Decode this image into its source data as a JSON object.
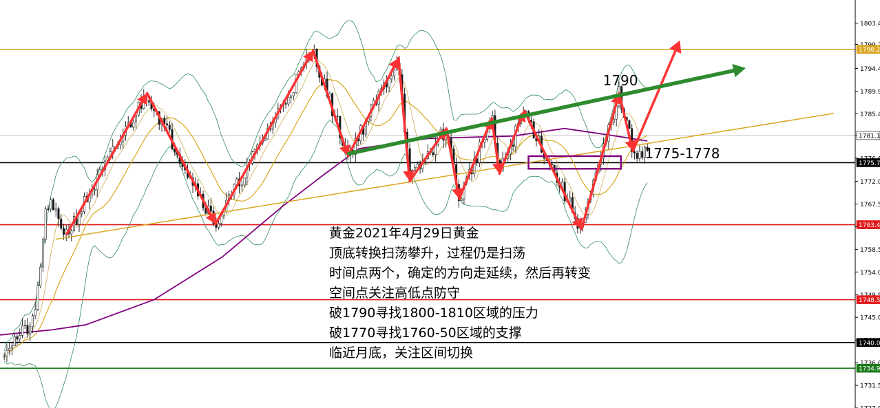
{
  "chart_data": {
    "type": "candlestick",
    "symbol": "XAUUSD",
    "ylim": [
      1727.0,
      1808.0
    ],
    "y_ticks": [
      "1803.4",
      "1799.2",
      "1794.4",
      "1789.9",
      "1785.4",
      "1781.1",
      "1776.6",
      "1772.0",
      "1767.5",
      "1763.0",
      "1758.5",
      "1754.0",
      "1749.5",
      "1745.0",
      "1740.5",
      "1736.0",
      "1731.5",
      "1727.0"
    ],
    "grid": false,
    "price_tags": [
      {
        "label": "1798.2",
        "value": 1798.2,
        "color": "#daa520"
      },
      {
        "label": "1781.1",
        "value": 1781.1,
        "color": "#ffffff"
      },
      {
        "label": "1775.7",
        "value": 1775.7,
        "color": "#000000"
      },
      {
        "label": "1763.4",
        "value": 1763.4,
        "color": "#e31a1c"
      },
      {
        "label": "1748.5",
        "value": 1748.5,
        "color": "#e31a1c"
      },
      {
        "label": "1740.0",
        "value": 1740.0,
        "color": "#000000"
      },
      {
        "label": "1734.9",
        "value": 1734.9,
        "color": "#1a7a1a"
      }
    ],
    "horizontal_levels": [
      {
        "value": 1798.2,
        "color": "#daa520"
      },
      {
        "value": 1775.7,
        "color": "#000000"
      },
      {
        "value": 1763.4,
        "color": "#e31a1c"
      },
      {
        "value": 1748.5,
        "color": "#e31a1c"
      },
      {
        "value": 1740.0,
        "color": "#000000"
      },
      {
        "value": 1734.9,
        "color": "#1a7a1a"
      }
    ],
    "swing_path": [
      [
        0.078,
        1761.5
      ],
      [
        0.172,
        1789.5
      ],
      [
        0.252,
        1763.5
      ],
      [
        0.366,
        1798.0
      ],
      [
        0.407,
        1777.0
      ],
      [
        0.466,
        1796.5
      ],
      [
        0.479,
        1772.0
      ],
      [
        0.522,
        1782.5
      ],
      [
        0.537,
        1768.5
      ],
      [
        0.575,
        1784.5
      ],
      [
        0.584,
        1773.5
      ],
      [
        0.613,
        1786.0
      ],
      [
        0.68,
        1762.5
      ],
      [
        0.724,
        1789.5
      ],
      [
        0.74,
        1778.0
      ]
    ],
    "projection_arrow": [
      [
        0.74,
        1778.0
      ],
      [
        0.795,
        1800.0
      ]
    ],
    "trend_arrow": [
      [
        0.408,
        1777.5
      ],
      [
        0.872,
        1794.5
      ]
    ],
    "support_trendline": [
      [
        0.065,
        1760.5
      ],
      [
        0.975,
        1785.5
      ]
    ],
    "consolidation_box": {
      "x": [
        0.618,
        0.726
      ],
      "y": [
        1774.5,
        1777.0
      ]
    },
    "annotations": [
      {
        "text": "1790",
        "x": 0.705,
        "y": 1792.0
      },
      {
        "text": "1775-1778",
        "x": 0.754,
        "y": 1777.6
      }
    ],
    "seed": 21
  },
  "notes": [
    "黄金2021年4月29日黄金",
    "顶底转换扫荡攀升，过程仍是扫荡",
    "时间点两个，确定的方向走延续，然后再转变",
    "空间点关注高低点防守",
    "破1790寻找1800-1810区域的压力",
    "破1770寻找1760-50区域的支撑",
    "临近月底，关注区间切换"
  ]
}
